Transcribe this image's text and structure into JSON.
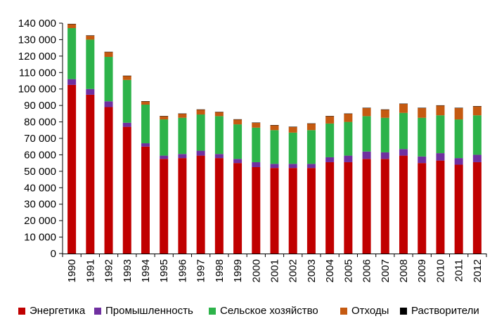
{
  "chart_data": {
    "type": "bar",
    "stacked": true,
    "categories": [
      "1990",
      "1991",
      "1992",
      "1993",
      "1994",
      "1995",
      "1996",
      "1997",
      "1998",
      "1999",
      "2000",
      "2001",
      "2002",
      "2003",
      "2004",
      "2005",
      "2006",
      "2007",
      "2008",
      "2009",
      "2010",
      "2011",
      "2012"
    ],
    "series": [
      {
        "name": "Энергетика",
        "color": "#c00000",
        "values": [
          102500,
          96500,
          89000,
          77000,
          65000,
          57500,
          58000,
          59500,
          58000,
          55000,
          52500,
          52000,
          52000,
          52000,
          55500,
          55500,
          57500,
          57500,
          59500,
          55000,
          56500,
          54000,
          55500
        ]
      },
      {
        "name": "Промышленность",
        "color": "#7030a0",
        "values": [
          3500,
          3500,
          3500,
          2500,
          2000,
          2000,
          2500,
          3000,
          2500,
          2500,
          3000,
          2500,
          2500,
          2500,
          3000,
          4000,
          4500,
          4000,
          4000,
          4000,
          4500,
          4000,
          4500
        ]
      },
      {
        "name": "Сельское хозяйство",
        "color": "#2db34a",
        "values": [
          31000,
          30000,
          27000,
          26000,
          23500,
          22000,
          22000,
          22000,
          23000,
          21000,
          21000,
          20500,
          19000,
          20500,
          20500,
          20500,
          21500,
          21000,
          22000,
          23500,
          23000,
          23500,
          24000
        ]
      },
      {
        "name": "Отходы",
        "color": "#c55a11",
        "values": [
          2500,
          2500,
          3000,
          2500,
          2000,
          2000,
          2500,
          3000,
          2500,
          3000,
          3000,
          3000,
          3500,
          4000,
          4500,
          5000,
          5000,
          5000,
          5500,
          6000,
          6000,
          7000,
          5500
        ]
      },
      {
        "name": "Растворители",
        "color": "#000000",
        "values": [
          100,
          100,
          100,
          100,
          100,
          100,
          100,
          100,
          100,
          100,
          100,
          100,
          100,
          100,
          100,
          100,
          100,
          100,
          100,
          100,
          100,
          100,
          100
        ]
      }
    ],
    "ylim": [
      0,
      140000
    ],
    "yticks": [
      0,
      10000,
      20000,
      30000,
      40000,
      50000,
      60000,
      70000,
      80000,
      90000,
      100000,
      110000,
      120000,
      130000,
      140000
    ],
    "ytick_labels": [
      "0",
      "10 000",
      "20 000",
      "30 000",
      "40 000",
      "50 000",
      "60 000",
      "70 000",
      "80 000",
      "90 000",
      "100 000",
      "110 000",
      "120 000",
      "130 000",
      "140 000"
    ],
    "grid": false,
    "legend_position": "bottom"
  }
}
